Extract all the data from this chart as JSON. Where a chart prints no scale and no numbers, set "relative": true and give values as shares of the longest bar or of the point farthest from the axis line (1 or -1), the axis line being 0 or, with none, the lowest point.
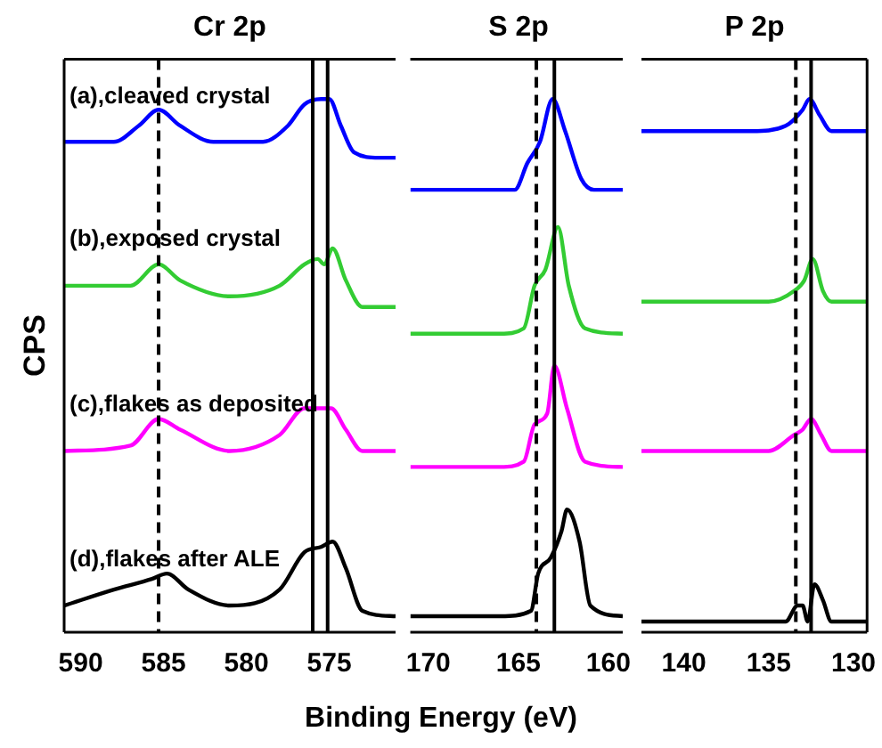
{
  "chart_data": [
    {
      "type": "line",
      "title": "Cr 2p",
      "ylabel": "CPS",
      "relative": true,
      "legend": false,
      "tick_labels": "x",
      "marker": "none",
      "line_style": "solid",
      "xlim": [
        591,
        571
      ],
      "xticks": [
        590,
        585,
        580,
        575
      ],
      "ref_lines": [
        {
          "axis": "x",
          "value": 585.3,
          "color": "#000000",
          "line_style": "dashed"
        },
        {
          "axis": "x",
          "value": 576,
          "color": "#000000",
          "line_style": "solid"
        },
        {
          "axis": "x",
          "value": 575.1,
          "color": "#000000",
          "line_style": "solid"
        }
      ],
      "series": [
        {
          "name": "(a),cleaved crystal",
          "color": "#0000ff",
          "x": [
            591,
            588,
            586.5,
            585.3,
            584,
            582,
            579,
            577.5,
            576.5,
            575.5,
            575,
            574.3,
            573.5,
            572,
            571
          ],
          "values": [
            0.92,
            0.92,
            0.95,
            0.98,
            0.95,
            0.92,
            0.92,
            0.95,
            0.99,
            1,
            1,
            0.95,
            0.9,
            0.89,
            0.89
          ]
        },
        {
          "name": "(b),exposed crystal",
          "color": "#33cc33",
          "x": [
            591,
            587,
            585.3,
            584,
            581,
            578,
            576.5,
            575.7,
            575.3,
            574.8,
            574,
            573,
            571
          ],
          "values": [
            0.65,
            0.65,
            0.69,
            0.66,
            0.63,
            0.65,
            0.69,
            0.7,
            0.69,
            0.72,
            0.66,
            0.61,
            0.61
          ]
        },
        {
          "name": "(c),flakes as deposited",
          "color": "#ff00ff",
          "x": [
            591,
            587,
            585.3,
            584,
            581,
            578,
            576.5,
            575.8,
            575.4,
            574.9,
            574,
            573,
            571
          ],
          "values": [
            0.34,
            0.35,
            0.4,
            0.38,
            0.34,
            0.37,
            0.42,
            0.42,
            0.42,
            0.42,
            0.38,
            0.34,
            0.34
          ]
        },
        {
          "name": "(d),flakes after ALE",
          "color": "#000000",
          "x": [
            591,
            588,
            585.7,
            584.8,
            583.5,
            581,
            578,
            576.5,
            575.5,
            574.8,
            574,
            573,
            571
          ],
          "values": [
            0.05,
            0.08,
            0.1,
            0.11,
            0.08,
            0.05,
            0.08,
            0.15,
            0.16,
            0.17,
            0.12,
            0.04,
            0.03
          ]
        }
      ]
    },
    {
      "type": "line",
      "title": "S 2p",
      "xlabel": "Binding Energy (eV)",
      "relative": true,
      "legend": false,
      "tick_labels": "x",
      "marker": "none",
      "line_style": "solid",
      "xlim": [
        171,
        159.2
      ],
      "xticks": [
        170,
        165,
        160
      ],
      "ref_lines": [
        {
          "axis": "x",
          "value": 164,
          "color": "#000000",
          "line_style": "dashed"
        },
        {
          "axis": "x",
          "value": 163,
          "color": "#000000",
          "line_style": "solid"
        }
      ],
      "series": [
        {
          "color": "#0000ff",
          "x": [
            171,
            167,
            165.2,
            164.5,
            163.8,
            163.1,
            162.4,
            161.5,
            160.8,
            159.2
          ],
          "values": [
            0.83,
            0.83,
            0.83,
            0.88,
            0.92,
            1,
            0.94,
            0.85,
            0.83,
            0.83
          ]
        },
        {
          "color": "#33cc33",
          "x": [
            171,
            166,
            164.7,
            164.1,
            163.5,
            162.8,
            162.2,
            161.3,
            159.2
          ],
          "values": [
            0.56,
            0.56,
            0.57,
            0.65,
            0.68,
            0.76,
            0.65,
            0.57,
            0.56
          ]
        },
        {
          "color": "#ff00ff",
          "x": [
            171,
            166,
            164.7,
            164.1,
            163.4,
            163,
            162.3,
            161.3,
            159.2
          ],
          "values": [
            0.31,
            0.31,
            0.32,
            0.39,
            0.41,
            0.5,
            0.42,
            0.32,
            0.31
          ]
        },
        {
          "color": "#000000",
          "x": [
            171,
            166,
            164.3,
            163.9,
            163.2,
            162.6,
            162.3,
            161.6,
            161,
            159.2
          ],
          "values": [
            0.03,
            0.03,
            0.04,
            0.11,
            0.14,
            0.19,
            0.23,
            0.17,
            0.05,
            0.03
          ]
        }
      ]
    },
    {
      "type": "line",
      "title": "P 2p",
      "relative": true,
      "legend": false,
      "tick_labels": "x",
      "marker": "none",
      "line_style": "solid",
      "xlim": [
        142.5,
        129.2
      ],
      "xticks": [
        140,
        135,
        130
      ],
      "ref_lines": [
        {
          "axis": "x",
          "value": 133.4,
          "color": "#000000",
          "line_style": "dashed"
        },
        {
          "axis": "x",
          "value": 132.5,
          "color": "#000000",
          "line_style": "solid"
        }
      ],
      "series": [
        {
          "color": "#0000ff",
          "x": [
            142.5,
            136,
            134,
            133,
            132.6,
            132,
            131.3,
            129.2
          ],
          "values": [
            0.94,
            0.94,
            0.95,
            0.98,
            1,
            0.97,
            0.94,
            0.94
          ]
        },
        {
          "color": "#33cc33",
          "x": [
            142.5,
            135,
            133.5,
            132.9,
            132.4,
            131.8,
            131.3,
            129.2
          ],
          "values": [
            0.62,
            0.62,
            0.64,
            0.66,
            0.7,
            0.64,
            0.62,
            0.62
          ]
        },
        {
          "color": "#ff00ff",
          "x": [
            142.5,
            135,
            133.5,
            133,
            132.5,
            131.9,
            131.3,
            129.2
          ],
          "values": [
            0.34,
            0.34,
            0.37,
            0.38,
            0.4,
            0.37,
            0.34,
            0.34
          ]
        },
        {
          "color": "#000000",
          "x": [
            142.5,
            134,
            133.3,
            133,
            132.7,
            132.3,
            131.8,
            131.3,
            129.2
          ],
          "values": [
            0.02,
            0.02,
            0.05,
            0.05,
            0.02,
            0.09,
            0.06,
            0.02,
            0.02
          ]
        }
      ]
    }
  ]
}
